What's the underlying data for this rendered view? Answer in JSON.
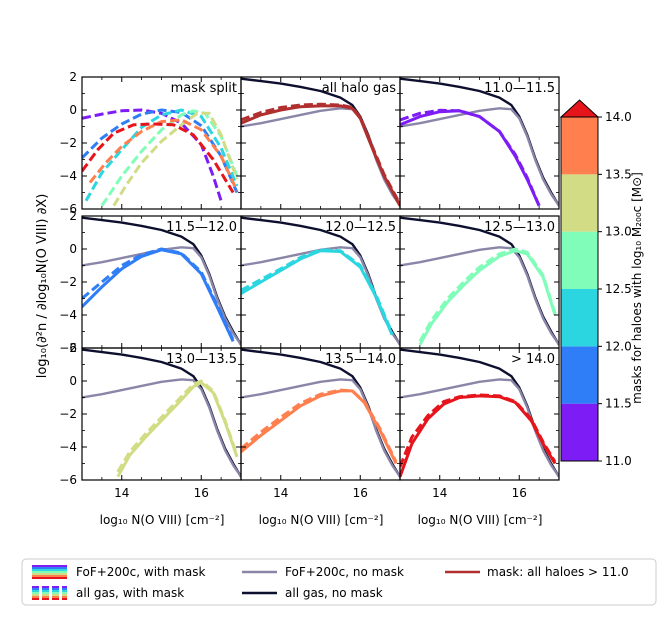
{
  "figure": {
    "ylabel": "log₁₀(∂²n / ∂log₁₀N(O VIII) ∂X)",
    "xlabel": "log₁₀ N(O VIII) [cm⁻²]"
  },
  "colorbar": {
    "label": "masks for haloes with log₁₀ M₂₀₀c [M⊙]",
    "ticks": [
      "11.0",
      "11.5",
      "12.0",
      "12.5",
      "13.0",
      "13.5",
      "14.0"
    ],
    "bins": [
      {
        "range": "11.0–11.5",
        "color": "#7d1cf5"
      },
      {
        "range": "11.5–12.0",
        "color": "#2f7ef8"
      },
      {
        "range": "12.0–12.5",
        "color": "#2bd6e0"
      },
      {
        "range": "12.5–13.0",
        "color": "#80fdb8"
      },
      {
        "range": "13.0–13.5",
        "color": "#d1dc85"
      },
      {
        "range": "13.5–14.0",
        "color": "#ff7f4e"
      },
      {
        "range": "> 14.0",
        "color": "#e6141b"
      }
    ]
  },
  "legend": {
    "items": [
      {
        "label": "FoF+200c, with mask",
        "style": "solid-multicolor"
      },
      {
        "label": "all gas, with mask",
        "style": "dashed-multicolor"
      },
      {
        "label": "FoF+200c, no mask",
        "style": "solid",
        "color": "#8a86a8"
      },
      {
        "label": "all gas, no mask",
        "style": "solid",
        "color": "#0d0f2e"
      },
      {
        "label": "mask: all haloes  > 11.0",
        "style": "solid",
        "color": "#b02f2f"
      }
    ]
  },
  "chart_data": {
    "type": "line",
    "layout": "3x3 small multiples, shared axes",
    "xlim": [
      13,
      17
    ],
    "ylim": [
      -6,
      2
    ],
    "xticks": [
      14,
      16
    ],
    "yticks": [
      -6,
      -4,
      -2,
      0,
      2
    ],
    "xtick_labels": [
      "14",
      "16"
    ],
    "ytick_labels": [
      "−6",
      "−4",
      "−2",
      "0",
      "2"
    ],
    "reference_curves": {
      "all_gas_no_mask": {
        "color": "#0d0f2e",
        "x": [
          13.0,
          13.5,
          14.0,
          14.5,
          15.0,
          15.5,
          15.8,
          16.0,
          16.2,
          16.4,
          16.6,
          16.8,
          17.0
        ],
        "y": [
          1.9,
          1.75,
          1.6,
          1.4,
          1.15,
          0.75,
          0.3,
          -0.4,
          -1.5,
          -2.9,
          -4.1,
          -5.0,
          -5.8
        ]
      },
      "fof_no_mask": {
        "color": "#8a86a8",
        "x": [
          13.0,
          13.5,
          14.0,
          14.5,
          15.0,
          15.5,
          15.8,
          16.0,
          16.2,
          16.4,
          16.6,
          16.8,
          17.0
        ],
        "y": [
          -1.0,
          -0.8,
          -0.55,
          -0.3,
          -0.05,
          0.1,
          0.05,
          -0.5,
          -1.6,
          -3.0,
          -4.2,
          -5.1,
          -5.8
        ]
      }
    },
    "panels": [
      {
        "title": "mask split",
        "series": [
          {
            "name": "11.0–11.5 all gas",
            "color": "#7d1cf5",
            "style": "dashed",
            "x": [
              13.0,
              13.5,
              14.0,
              14.5,
              15.0,
              15.5,
              16.0,
              16.3,
              16.5
            ],
            "y": [
              -0.5,
              -0.25,
              -0.05,
              0.0,
              -0.2,
              -0.8,
              -2.1,
              -4.0,
              -5.5
            ]
          },
          {
            "name": "11.5–12.0 all gas",
            "color": "#2f7ef8",
            "style": "dashed",
            "x": [
              13.0,
              13.5,
              14.0,
              14.5,
              15.0,
              15.5,
              16.0,
              16.5,
              16.9
            ],
            "y": [
              -2.9,
              -1.7,
              -0.85,
              -0.25,
              0.0,
              -0.15,
              -0.95,
              -2.8,
              -5.0
            ]
          },
          {
            "name": "12.0–12.5 all gas",
            "color": "#2bd6e0",
            "style": "dashed",
            "x": [
              13.1,
              13.5,
              14.0,
              14.5,
              15.0,
              15.5,
              16.0,
              16.5,
              16.9
            ],
            "y": [
              -5.5,
              -3.8,
              -2.4,
              -1.05,
              -0.3,
              0.0,
              -0.4,
              -2.3,
              -4.6
            ]
          },
          {
            "name": "12.5–13.0 all gas",
            "color": "#80fdb8",
            "style": "dashed",
            "x": [
              13.5,
              14.0,
              14.5,
              15.0,
              15.5,
              15.8,
              16.1,
              16.5,
              16.9
            ],
            "y": [
              -5.8,
              -4.0,
              -2.5,
              -1.2,
              -0.3,
              -0.05,
              -0.2,
              -1.6,
              -4.0
            ]
          },
          {
            "name": "13.0–13.5 all gas",
            "color": "#d1dc85",
            "style": "dashed",
            "x": [
              13.8,
              14.1,
              14.5,
              15.0,
              15.5,
              15.9,
              16.2,
              16.5,
              16.9
            ],
            "y": [
              -5.8,
              -4.6,
              -3.2,
              -1.9,
              -0.9,
              -0.2,
              -0.2,
              -1.5,
              -4.2
            ]
          },
          {
            "name": "13.5–14.0 all gas",
            "color": "#ff7f4e",
            "style": "dashed",
            "x": [
              13.2,
              13.6,
              14.0,
              14.5,
              15.0,
              15.5,
              16.0,
              16.5,
              16.9
            ],
            "y": [
              -4.4,
              -3.2,
              -2.2,
              -1.3,
              -0.7,
              -0.6,
              -1.2,
              -2.8,
              -4.9
            ]
          },
          {
            "name": "> 14.0 all gas",
            "color": "#e6141b",
            "style": "dashed",
            "x": [
              13.0,
              13.4,
              13.8,
              14.3,
              14.8,
              15.3,
              15.8,
              16.3,
              16.8
            ],
            "y": [
              -3.7,
              -2.4,
              -1.4,
              -0.9,
              -0.85,
              -0.9,
              -1.5,
              -3.0,
              -5.0
            ]
          }
        ]
      },
      {
        "title": "all halo gas",
        "series": [
          {
            "name": "mask: all haloes > 11.0, FoF",
            "color": "#b02f2f",
            "style": "solid",
            "x": [
              13.0,
              13.5,
              14.0,
              14.5,
              15.0,
              15.5,
              15.8,
              16.0,
              16.3,
              16.6,
              17.0
            ],
            "y": [
              -0.8,
              -0.3,
              0.0,
              0.2,
              0.25,
              0.25,
              0.1,
              -0.5,
              -2.3,
              -4.0,
              -5.8
            ]
          },
          {
            "name": "mask: all haloes > 11.0, all gas",
            "color": "#b02f2f",
            "style": "dashed",
            "x": [
              13.0,
              13.5,
              14.0,
              14.5,
              15.0,
              15.5,
              15.8,
              16.0,
              16.3,
              16.6,
              17.0
            ],
            "y": [
              -0.6,
              -0.15,
              0.15,
              0.3,
              0.35,
              0.3,
              0.15,
              -0.45,
              -2.2,
              -3.9,
              -5.7
            ]
          }
        ]
      },
      {
        "title": "11.0—11.5",
        "series": [
          {
            "name": "FoF+200c, with mask",
            "color": "#7d1cf5",
            "style": "solid",
            "x": [
              13.0,
              13.5,
              14.0,
              14.5,
              15.0,
              15.5,
              15.9,
              16.2,
              16.5
            ],
            "y": [
              -0.9,
              -0.4,
              -0.1,
              -0.05,
              -0.4,
              -1.3,
              -2.8,
              -4.2,
              -5.8
            ]
          },
          {
            "name": "all gas, with mask",
            "color": "#7d1cf5",
            "style": "dashed",
            "x": [
              13.0,
              13.5,
              14.0,
              14.5,
              15.0,
              15.5,
              15.9,
              16.2,
              16.5
            ],
            "y": [
              -0.6,
              -0.2,
              -0.02,
              -0.05,
              -0.4,
              -1.3,
              -2.7,
              -4.1,
              -5.8
            ]
          }
        ]
      },
      {
        "title": "11.5—12.0",
        "series": [
          {
            "name": "FoF+200c, with mask",
            "color": "#2f7ef8",
            "style": "solid",
            "x": [
              13.0,
              13.5,
              14.0,
              14.5,
              15.0,
              15.5,
              16.0,
              16.4,
              16.8
            ],
            "y": [
              -3.5,
              -2.3,
              -1.2,
              -0.45,
              -0.05,
              -0.3,
              -1.5,
              -3.5,
              -5.6
            ]
          },
          {
            "name": "all gas, with mask",
            "color": "#2f7ef8",
            "style": "dashed",
            "x": [
              13.0,
              13.5,
              14.0,
              14.5,
              15.0,
              15.5,
              16.0,
              16.4,
              16.8
            ],
            "y": [
              -3.0,
              -2.0,
              -1.0,
              -0.35,
              0.0,
              -0.25,
              -1.4,
              -3.4,
              -5.5
            ]
          }
        ]
      },
      {
        "title": "12.0—12.5",
        "series": [
          {
            "name": "FoF+200c, with mask",
            "color": "#2bd6e0",
            "style": "solid",
            "x": [
              13.0,
              13.5,
              14.0,
              14.5,
              15.0,
              15.5,
              16.0,
              16.4,
              16.8
            ],
            "y": [
              -2.7,
              -2.0,
              -1.3,
              -0.6,
              -0.1,
              -0.15,
              -1.1,
              -2.9,
              -5.2
            ]
          },
          {
            "name": "all gas, with mask",
            "color": "#2bd6e0",
            "style": "dashed",
            "x": [
              13.0,
              13.5,
              14.0,
              14.5,
              15.0,
              15.5,
              16.0,
              16.4,
              16.8
            ],
            "y": [
              -2.5,
              -1.85,
              -1.2,
              -0.5,
              -0.05,
              -0.1,
              -1.0,
              -2.8,
              -5.1
            ]
          }
        ]
      },
      {
        "title": "12.5—13.0",
        "series": [
          {
            "name": "FoF+200c, with mask",
            "color": "#80fdb8",
            "style": "solid",
            "x": [
              13.5,
              13.8,
              14.2,
              14.6,
              15.0,
              15.5,
              15.9,
              16.2,
              16.6,
              16.9
            ],
            "y": [
              -5.8,
              -4.5,
              -3.2,
              -2.2,
              -1.3,
              -0.45,
              -0.1,
              -0.3,
              -1.7,
              -4.0
            ]
          },
          {
            "name": "all gas, with mask",
            "color": "#80fdb8",
            "style": "dashed",
            "x": [
              13.5,
              13.8,
              14.2,
              14.6,
              15.0,
              15.5,
              15.9,
              16.2,
              16.6,
              16.9
            ],
            "y": [
              -5.6,
              -4.3,
              -3.0,
              -2.0,
              -1.1,
              -0.3,
              0.0,
              -0.2,
              -1.6,
              -3.9
            ]
          }
        ]
      },
      {
        "title": "13.0—13.5",
        "series": [
          {
            "name": "FoF+200c, with mask",
            "color": "#d1dc85",
            "style": "solid",
            "x": [
              13.9,
              14.2,
              14.6,
              15.0,
              15.4,
              15.8,
              16.0,
              16.3,
              16.6,
              16.9
            ],
            "y": [
              -5.8,
              -4.5,
              -3.4,
              -2.4,
              -1.4,
              -0.35,
              -0.1,
              -0.7,
              -2.5,
              -4.6
            ]
          },
          {
            "name": "all gas, with mask",
            "color": "#d1dc85",
            "style": "dashed",
            "x": [
              13.9,
              14.2,
              14.6,
              15.0,
              15.4,
              15.8,
              16.0,
              16.3,
              16.6,
              16.9
            ],
            "y": [
              -5.5,
              -4.3,
              -3.2,
              -2.2,
              -1.2,
              -0.2,
              0.0,
              -0.6,
              -2.4,
              -4.5
            ]
          }
        ]
      },
      {
        "title": "13.5—14.0",
        "series": [
          {
            "name": "FoF+200c, with mask",
            "color": "#ff7f4e",
            "style": "solid",
            "x": [
              13.0,
              13.5,
              14.0,
              14.5,
              15.0,
              15.5,
              15.8,
              16.1,
              16.5,
              16.9
            ],
            "y": [
              -4.3,
              -3.3,
              -2.4,
              -1.5,
              -0.9,
              -0.6,
              -0.6,
              -1.3,
              -3.0,
              -5.0
            ]
          },
          {
            "name": "all gas, with mask",
            "color": "#ff7f4e",
            "style": "dashed",
            "x": [
              13.0,
              13.5,
              14.0,
              14.5,
              15.0,
              15.5,
              15.8,
              16.1,
              16.5,
              16.9
            ],
            "y": [
              -4.1,
              -3.1,
              -2.2,
              -1.35,
              -0.8,
              -0.55,
              -0.6,
              -1.25,
              -2.9,
              -4.9
            ]
          }
        ]
      },
      {
        "title": "> 14.0",
        "series": [
          {
            "name": "FoF+200c, with mask",
            "color": "#e6141b",
            "style": "solid",
            "x": [
              13.0,
              13.3,
              13.7,
              14.1,
              14.5,
              15.0,
              15.5,
              15.9,
              16.3,
              16.6,
              16.9
            ],
            "y": [
              -5.8,
              -3.8,
              -2.3,
              -1.4,
              -1.0,
              -0.9,
              -0.95,
              -1.3,
              -2.4,
              -3.8,
              -5.0
            ]
          },
          {
            "name": "all gas, with mask",
            "color": "#e6141b",
            "style": "dashed",
            "x": [
              13.0,
              13.3,
              13.7,
              14.1,
              14.5,
              15.0,
              15.5,
              15.9,
              16.3,
              16.6,
              16.9
            ],
            "y": [
              -5.2,
              -3.4,
              -2.1,
              -1.25,
              -0.95,
              -0.85,
              -0.9,
              -1.25,
              -2.3,
              -3.7,
              -4.9
            ]
          }
        ]
      }
    ]
  }
}
